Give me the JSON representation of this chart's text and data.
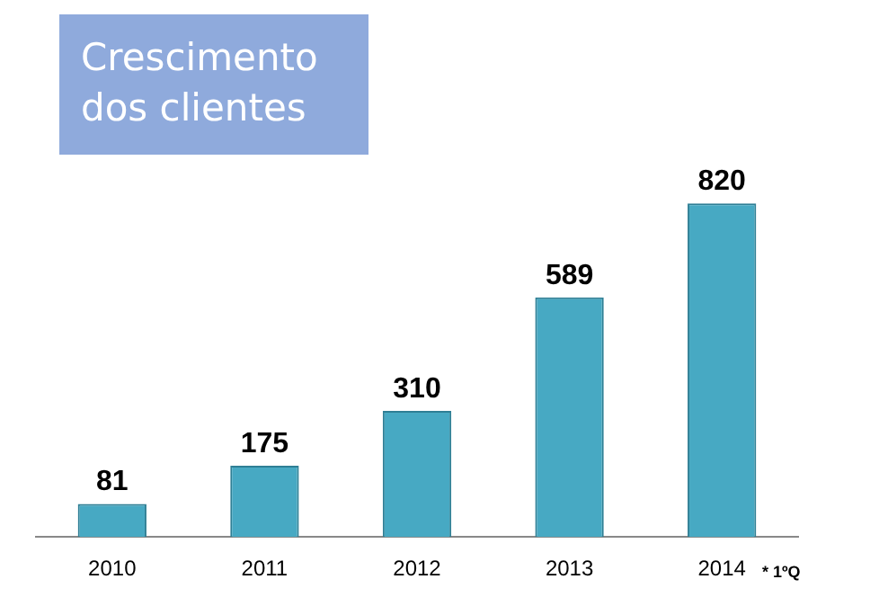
{
  "chart_data": {
    "type": "bar",
    "title": "Crescimento dos clientes",
    "categories": [
      "2010",
      "2011",
      "2012",
      "2013",
      "2014"
    ],
    "values": [
      81,
      175,
      310,
      589,
      820
    ],
    "color": "#47a9c3",
    "data_labels": true,
    "grid": false,
    "legend": false,
    "annotations": [
      "* 1ºQ"
    ]
  }
}
